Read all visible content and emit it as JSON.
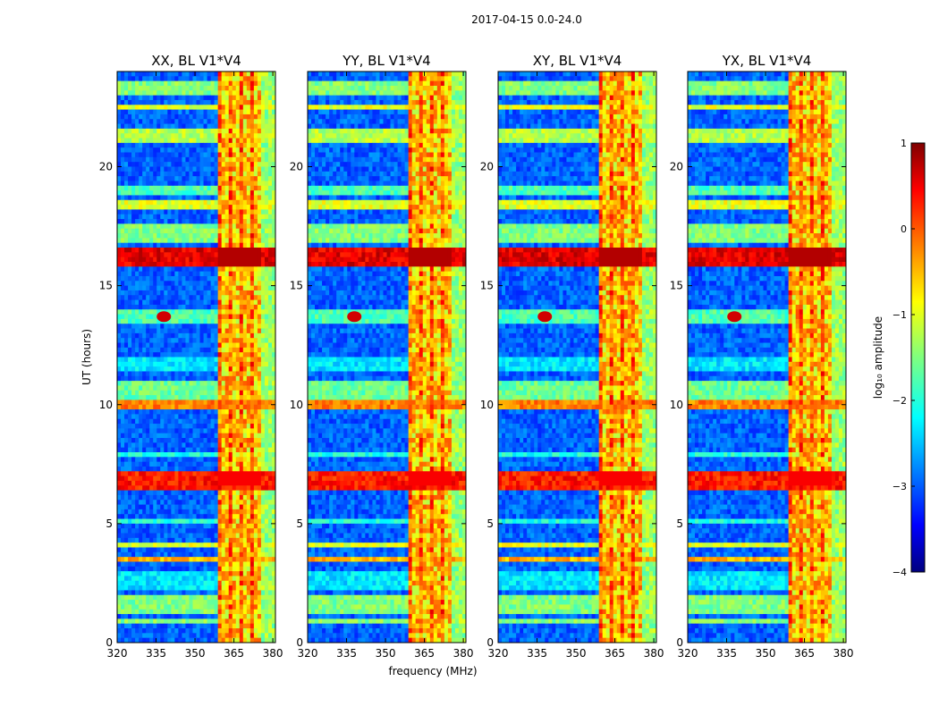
{
  "suptitle": "2017-04-15 0.0-24.0",
  "chart_data": [
    {
      "type": "heatmap",
      "title": "XX, BL V1*V4",
      "xlabel": "",
      "ylabel": "UT (hours)",
      "xlim": [
        320,
        381
      ],
      "ylim": [
        0,
        24
      ],
      "xticks": [
        320,
        335,
        350,
        365,
        380
      ],
      "yticks": [
        0,
        5,
        10,
        15,
        20
      ],
      "xtick_labels": [
        "320",
        "335",
        "350",
        "365",
        "380"
      ],
      "ytick_labels": [
        "0",
        "5",
        "10",
        "15",
        "20"
      ]
    },
    {
      "type": "heatmap",
      "title": "YY, BL V1*V4",
      "xlabel": "frequency (MHz)",
      "ylabel": "",
      "xlim": [
        320,
        381
      ],
      "ylim": [
        0,
        24
      ],
      "xticks": [
        320,
        335,
        350,
        365,
        380
      ],
      "yticks": [
        0,
        5,
        10,
        15,
        20
      ],
      "xtick_labels": [
        "320",
        "335",
        "350",
        "365",
        "380"
      ],
      "ytick_labels": [
        "0",
        "5",
        "10",
        "15",
        "20"
      ]
    },
    {
      "type": "heatmap",
      "title": "XY, BL V1*V4",
      "xlabel": "",
      "ylabel": "",
      "xlim": [
        320,
        381
      ],
      "ylim": [
        0,
        24
      ],
      "xticks": [
        320,
        335,
        350,
        365,
        380
      ],
      "yticks": [
        0,
        5,
        10,
        15,
        20
      ],
      "xtick_labels": [
        "320",
        "335",
        "350",
        "365",
        "380"
      ],
      "ytick_labels": [
        "0",
        "5",
        "10",
        "15",
        "20"
      ]
    },
    {
      "type": "heatmap",
      "title": "YX, BL V1*V4",
      "xlabel": "",
      "ylabel": "",
      "xlim": [
        320,
        381
      ],
      "ylim": [
        0,
        24
      ],
      "xticks": [
        320,
        335,
        350,
        365,
        380
      ],
      "yticks": [
        0,
        5,
        10,
        15,
        20
      ],
      "xtick_labels": [
        "320",
        "335",
        "350",
        "365",
        "380"
      ],
      "ytick_labels": [
        "0",
        "5",
        "10",
        "15",
        "20"
      ]
    }
  ],
  "colorbar": {
    "label": "log₁₀ amplitude",
    "range": [
      -4,
      1
    ],
    "ticks": [
      1,
      0,
      -1,
      -2,
      -3,
      -4
    ],
    "tick_labels": [
      "1",
      "0",
      "−1",
      "−2",
      "−3",
      "−4"
    ],
    "colormap": "jet"
  },
  "colors": {
    "jet_dark_blue": "#00007f",
    "jet_blue": "#0000ff",
    "jet_cyan": "#00ffff",
    "jet_green": "#7fff7f",
    "jet_yellow": "#ffff00",
    "jet_red": "#ff0000",
    "jet_dark_red": "#7f0000"
  }
}
